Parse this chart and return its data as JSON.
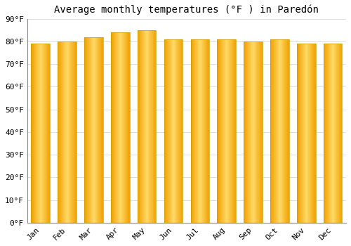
{
  "title": "Average monthly temperatures (°F ) in Paredón",
  "months": [
    "Jan",
    "Feb",
    "Mar",
    "Apr",
    "May",
    "Jun",
    "Jul",
    "Aug",
    "Sep",
    "Oct",
    "Nov",
    "Dec"
  ],
  "values": [
    79,
    80,
    82,
    84,
    85,
    81,
    81,
    81,
    80,
    81,
    79,
    79
  ],
  "bar_color_center": "#FFD966",
  "bar_color_edge": "#F0A000",
  "background_color": "#FFFFFF",
  "ylim": [
    0,
    90
  ],
  "yticks": [
    0,
    10,
    20,
    30,
    40,
    50,
    60,
    70,
    80,
    90
  ],
  "grid_color": "#DDDDDD",
  "title_fontsize": 10,
  "tick_fontsize": 8,
  "font_family": "monospace",
  "bar_edge_color": "#C8A000",
  "bar_width": 0.7
}
